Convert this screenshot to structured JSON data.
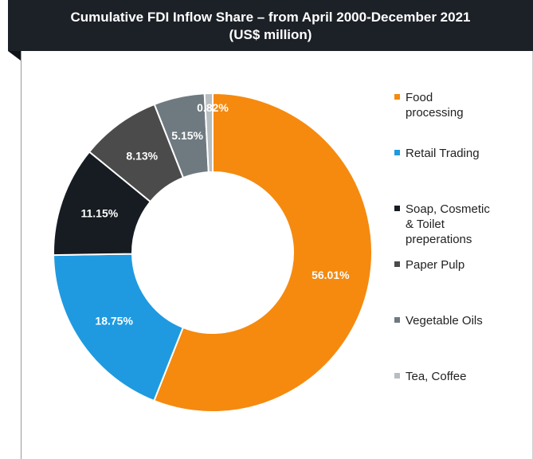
{
  "header": {
    "title_line1": "Cumulative FDI Inflow Share – from April 2000-December 2021",
    "title_line2": "(US$ million)"
  },
  "chart_data": {
    "type": "pie",
    "donut": true,
    "title": "Cumulative FDI Inflow Share – from April 2000-December 2021 (US$ million)",
    "legend_position": "right",
    "slices": [
      {
        "name": "Food processing",
        "value": 56.01,
        "label": "56.01%",
        "color": "#f58a0f",
        "label_color": "#ffffff"
      },
      {
        "name": "Retail Trading",
        "value": 18.75,
        "label": "18.75%",
        "color": "#1f9ae0",
        "label_color": "#ffffff"
      },
      {
        "name": "Soap, Cosmetic & Toilet preperations",
        "value": 11.15,
        "label": "11.15%",
        "color": "#171c22",
        "label_color": "#ffffff"
      },
      {
        "name": "Paper Pulp",
        "value": 8.13,
        "label": "8.13%",
        "color": "#4b4b4b",
        "label_color": "#ffffff"
      },
      {
        "name": "Vegetable Oils",
        "value": 5.15,
        "label": "5.15%",
        "color": "#6f7a80",
        "label_color": "#ffffff"
      },
      {
        "name": "Tea, Coffee",
        "value": 0.82,
        "label": "0.82%",
        "color": "#b8bdc0",
        "label_color": "#ffffff"
      }
    ]
  },
  "legend": {
    "items": [
      {
        "text_line1": "Food",
        "text_line2": "processing",
        "text_line3": ""
      },
      {
        "text_line1": "Retail Trading",
        "text_line2": "",
        "text_line3": ""
      },
      {
        "text_line1": "Soap, Cosmetic",
        "text_line2": "& Toilet",
        "text_line3": "preperations"
      },
      {
        "text_line1": "Paper Pulp",
        "text_line2": "",
        "text_line3": ""
      },
      {
        "text_line1": "Vegetable Oils",
        "text_line2": "",
        "text_line3": ""
      },
      {
        "text_line1": "Tea, Coffee",
        "text_line2": "",
        "text_line3": ""
      }
    ]
  }
}
